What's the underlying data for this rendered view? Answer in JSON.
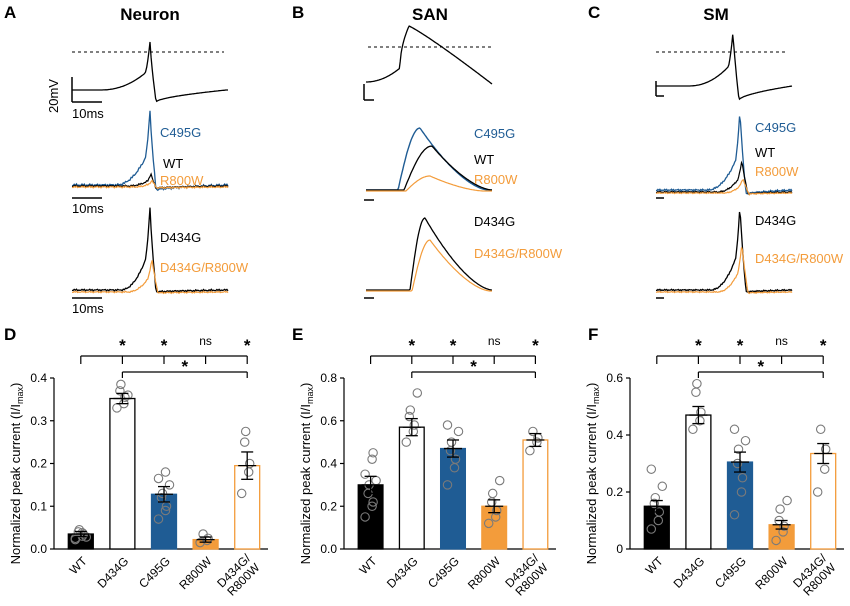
{
  "colors": {
    "wt": "#000000",
    "d434g": "#000000",
    "c495g": "#1f5c94",
    "r800w": "#f39c3b",
    "d434g_r800w": "#f39c3b",
    "dotted": "#000000"
  },
  "titles": {
    "a": "Neuron",
    "b": "SAN",
    "c": "SM"
  },
  "panel_letters": [
    "A",
    "B",
    "C",
    "D",
    "E",
    "F"
  ],
  "scale": {
    "voltage": "20mV",
    "time": "10ms"
  },
  "trace_labels": {
    "c495g": "C495G",
    "wt": "WT",
    "r800w": "R800W",
    "d434g": "D434G",
    "d434g_r800w": "D434G/R800W"
  },
  "ylabel": "Normalized peak current (I/I",
  "ylabel_sub": "max",
  "ylabel_close": ")",
  "significance": {
    "star": "*",
    "ns": "ns"
  },
  "chart_data": [
    {
      "type": "bar",
      "panel": "D",
      "title": "Neuron",
      "categories": [
        "WT",
        "D434G",
        "C495G",
        "R800W",
        "D434G/\nR800W"
      ],
      "category_lines": [
        [
          "WT"
        ],
        [
          "D434G"
        ],
        [
          "C495G"
        ],
        [
          "R800W"
        ],
        [
          "D434G/",
          "R800W"
        ]
      ],
      "values": [
        0.035,
        0.352,
        0.128,
        0.022,
        0.195
      ],
      "errors": [
        0.006,
        0.012,
        0.018,
        0.006,
        0.032
      ],
      "fill": [
        "solid",
        "hollow",
        "solid",
        "solid",
        "hollow"
      ],
      "series_colors": [
        "wt",
        "d434g",
        "c495g",
        "r800w",
        "d434g_r800w"
      ],
      "points": [
        [
          0.025,
          0.03,
          0.035,
          0.04,
          0.045,
          0.028,
          0.022,
          0.038
        ],
        [
          0.33,
          0.34,
          0.355,
          0.37,
          0.385,
          0.36
        ],
        [
          0.07,
          0.09,
          0.1,
          0.12,
          0.13,
          0.15,
          0.165,
          0.18
        ],
        [
          0.015,
          0.02,
          0.025,
          0.035
        ],
        [
          0.13,
          0.18,
          0.2,
          0.25,
          0.275
        ]
      ],
      "ylim": [
        0,
        0.4
      ],
      "yticks": [
        "0.0",
        "0.1",
        "0.2",
        "0.3",
        "0.4"
      ],
      "ytick_values": [
        0,
        0.1,
        0.2,
        0.3,
        0.4
      ],
      "ylabel": "Normalized peak current (I/Imax)",
      "sig_top": [
        "*",
        "*",
        "ns",
        "*"
      ],
      "sig_bottom": "*"
    },
    {
      "type": "bar",
      "panel": "E",
      "title": "SAN",
      "categories": [
        "WT",
        "D434G",
        "C495G",
        "R800W",
        "D434G/\nR800W"
      ],
      "category_lines": [
        [
          "WT"
        ],
        [
          "D434G"
        ],
        [
          "C495G"
        ],
        [
          "R800W"
        ],
        [
          "D434G/",
          "R800W"
        ]
      ],
      "values": [
        0.3,
        0.57,
        0.47,
        0.2,
        0.51
      ],
      "errors": [
        0.04,
        0.04,
        0.04,
        0.03,
        0.03
      ],
      "fill": [
        "solid",
        "hollow",
        "solid",
        "solid",
        "hollow"
      ],
      "series_colors": [
        "wt",
        "d434g",
        "c495g",
        "r800w",
        "d434g_r800w"
      ],
      "points": [
        [
          0.15,
          0.2,
          0.22,
          0.26,
          0.3,
          0.32,
          0.35,
          0.42,
          0.45
        ],
        [
          0.5,
          0.55,
          0.58,
          0.62,
          0.65,
          0.73
        ],
        [
          0.3,
          0.38,
          0.42,
          0.46,
          0.5,
          0.55,
          0.58
        ],
        [
          0.12,
          0.15,
          0.18,
          0.22,
          0.26,
          0.32
        ],
        [
          0.46,
          0.5,
          0.52,
          0.55
        ]
      ],
      "ylim": [
        0,
        0.8
      ],
      "yticks": [
        "0.0",
        "0.2",
        "0.4",
        "0.6",
        "0.8"
      ],
      "ytick_values": [
        0,
        0.2,
        0.4,
        0.6,
        0.8
      ],
      "ylabel": "Normalized peak current (I/Imax)",
      "sig_top": [
        "*",
        "*",
        "ns",
        "*"
      ],
      "sig_bottom": "*"
    },
    {
      "type": "bar",
      "panel": "F",
      "title": "SM",
      "categories": [
        "WT",
        "D434G",
        "C495G",
        "R800W",
        "D434G/\nR800W"
      ],
      "category_lines": [
        [
          "WT"
        ],
        [
          "D434G"
        ],
        [
          "C495G"
        ],
        [
          "R800W"
        ],
        [
          "D434G/",
          "R800W"
        ]
      ],
      "values": [
        0.15,
        0.47,
        0.305,
        0.085,
        0.335
      ],
      "errors": [
        0.02,
        0.03,
        0.035,
        0.015,
        0.035
      ],
      "fill": [
        "solid",
        "hollow",
        "solid",
        "solid",
        "hollow"
      ],
      "series_colors": [
        "wt",
        "d434g",
        "c495g",
        "r800w",
        "d434g_r800w"
      ],
      "points": [
        [
          0.07,
          0.1,
          0.13,
          0.16,
          0.18,
          0.22,
          0.28
        ],
        [
          0.42,
          0.45,
          0.48,
          0.55,
          0.58
        ],
        [
          0.12,
          0.2,
          0.25,
          0.3,
          0.35,
          0.38,
          0.42
        ],
        [
          0.03,
          0.06,
          0.08,
          0.1,
          0.14,
          0.17
        ],
        [
          0.2,
          0.28,
          0.35,
          0.42
        ]
      ],
      "ylim": [
        0,
        0.6
      ],
      "yticks": [
        "0",
        "0.2",
        "0.4",
        "0.6"
      ],
      "ytick_values": [
        0,
        0.2,
        0.4,
        0.6
      ],
      "ylabel": "Normalized peak current (I/Imax)",
      "sig_top": [
        "*",
        "*",
        "ns",
        "*"
      ],
      "sig_bottom": "*"
    }
  ]
}
